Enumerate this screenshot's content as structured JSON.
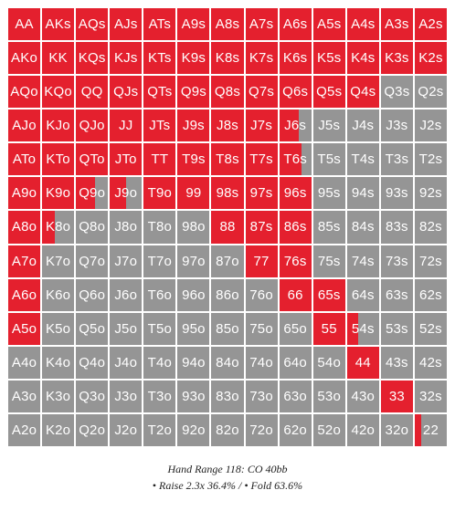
{
  "colors": {
    "raise": "#e4202e",
    "fold": "#959595"
  },
  "grid": {
    "rows": [
      {
        "hands": [
          "AA",
          "AKs",
          "AQs",
          "AJs",
          "ATs",
          "A9s",
          "A8s",
          "A7s",
          "A6s",
          "A5s",
          "A4s",
          "A3s",
          "A2s"
        ],
        "raise": [
          1,
          1,
          1,
          1,
          1,
          1,
          1,
          1,
          1,
          1,
          1,
          1,
          1
        ]
      },
      {
        "hands": [
          "AKo",
          "KK",
          "KQs",
          "KJs",
          "KTs",
          "K9s",
          "K8s",
          "K7s",
          "K6s",
          "K5s",
          "K4s",
          "K3s",
          "K2s"
        ],
        "raise": [
          1,
          1,
          1,
          1,
          1,
          1,
          1,
          1,
          1,
          1,
          1,
          1,
          1
        ]
      },
      {
        "hands": [
          "AQo",
          "KQo",
          "QQ",
          "QJs",
          "QTs",
          "Q9s",
          "Q8s",
          "Q7s",
          "Q6s",
          "Q5s",
          "Q4s",
          "Q3s",
          "Q2s"
        ],
        "raise": [
          1,
          1,
          1,
          1,
          1,
          1,
          1,
          1,
          1,
          1,
          1,
          0,
          0
        ]
      },
      {
        "hands": [
          "AJo",
          "KJo",
          "QJo",
          "JJ",
          "JTs",
          "J9s",
          "J8s",
          "J7s",
          "J6s",
          "J5s",
          "J4s",
          "J3s",
          "J2s"
        ],
        "raise": [
          1,
          1,
          1,
          1,
          1,
          1,
          1,
          1,
          0.6,
          0,
          0,
          0,
          0
        ]
      },
      {
        "hands": [
          "ATo",
          "KTo",
          "QTo",
          "JTo",
          "TT",
          "T9s",
          "T8s",
          "T7s",
          "T6s",
          "T5s",
          "T4s",
          "T3s",
          "T2s"
        ],
        "raise": [
          1,
          1,
          1,
          1,
          1,
          1,
          1,
          1,
          0.7,
          0,
          0,
          0,
          0
        ]
      },
      {
        "hands": [
          "A9o",
          "K9o",
          "Q9o",
          "J9o",
          "T9o",
          "99",
          "98s",
          "97s",
          "96s",
          "95s",
          "94s",
          "93s",
          "92s"
        ],
        "raise": [
          1,
          1,
          0.6,
          0.5,
          1,
          1,
          1,
          1,
          1,
          0,
          0,
          0,
          0
        ]
      },
      {
        "hands": [
          "A8o",
          "K8o",
          "Q8o",
          "J8o",
          "T8o",
          "98o",
          "88",
          "87s",
          "86s",
          "85s",
          "84s",
          "83s",
          "82s"
        ],
        "raise": [
          1,
          0.4,
          0,
          0,
          0,
          0,
          1,
          1,
          1,
          0,
          0,
          0,
          0
        ]
      },
      {
        "hands": [
          "A7o",
          "K7o",
          "Q7o",
          "J7o",
          "T7o",
          "97o",
          "87o",
          "77",
          "76s",
          "75s",
          "74s",
          "73s",
          "72s"
        ],
        "raise": [
          1,
          0,
          0,
          0,
          0,
          0,
          0,
          1,
          1,
          0,
          0,
          0,
          0
        ]
      },
      {
        "hands": [
          "A6o",
          "K6o",
          "Q6o",
          "J6o",
          "T6o",
          "96o",
          "86o",
          "76o",
          "66",
          "65s",
          "64s",
          "63s",
          "62s"
        ],
        "raise": [
          1,
          0,
          0,
          0,
          0,
          0,
          0,
          0,
          1,
          1,
          0,
          0,
          0
        ]
      },
      {
        "hands": [
          "A5o",
          "K5o",
          "Q5o",
          "J5o",
          "T5o",
          "95o",
          "85o",
          "75o",
          "65o",
          "55",
          "54s",
          "53s",
          "52s"
        ],
        "raise": [
          1,
          0,
          0,
          0,
          0,
          0,
          0,
          0,
          0,
          1,
          0.35,
          0,
          0
        ]
      },
      {
        "hands": [
          "A4o",
          "K4o",
          "Q4o",
          "J4o",
          "T4o",
          "94o",
          "84o",
          "74o",
          "64o",
          "54o",
          "44",
          "43s",
          "42s"
        ],
        "raise": [
          0,
          0,
          0,
          0,
          0,
          0,
          0,
          0,
          0,
          0,
          1,
          0,
          0
        ]
      },
      {
        "hands": [
          "A3o",
          "K3o",
          "Q3o",
          "J3o",
          "T3o",
          "93o",
          "83o",
          "73o",
          "63o",
          "53o",
          "43o",
          "33",
          "32s"
        ],
        "raise": [
          0,
          0,
          0,
          0,
          0,
          0,
          0,
          0,
          0,
          0,
          0,
          1,
          0
        ]
      },
      {
        "hands": [
          "A2o",
          "K2o",
          "Q2o",
          "J2o",
          "T2o",
          "92o",
          "82o",
          "72o",
          "62o",
          "52o",
          "42o",
          "32o",
          "22"
        ],
        "raise": [
          0,
          0,
          0,
          0,
          0,
          0,
          0,
          0,
          0,
          0,
          0,
          0,
          0.2
        ]
      }
    ]
  },
  "caption": {
    "title": "Hand Range 118: CO 40bb",
    "legend": "• Raise 2.3x 36.4% / • Fold 63.6%"
  }
}
